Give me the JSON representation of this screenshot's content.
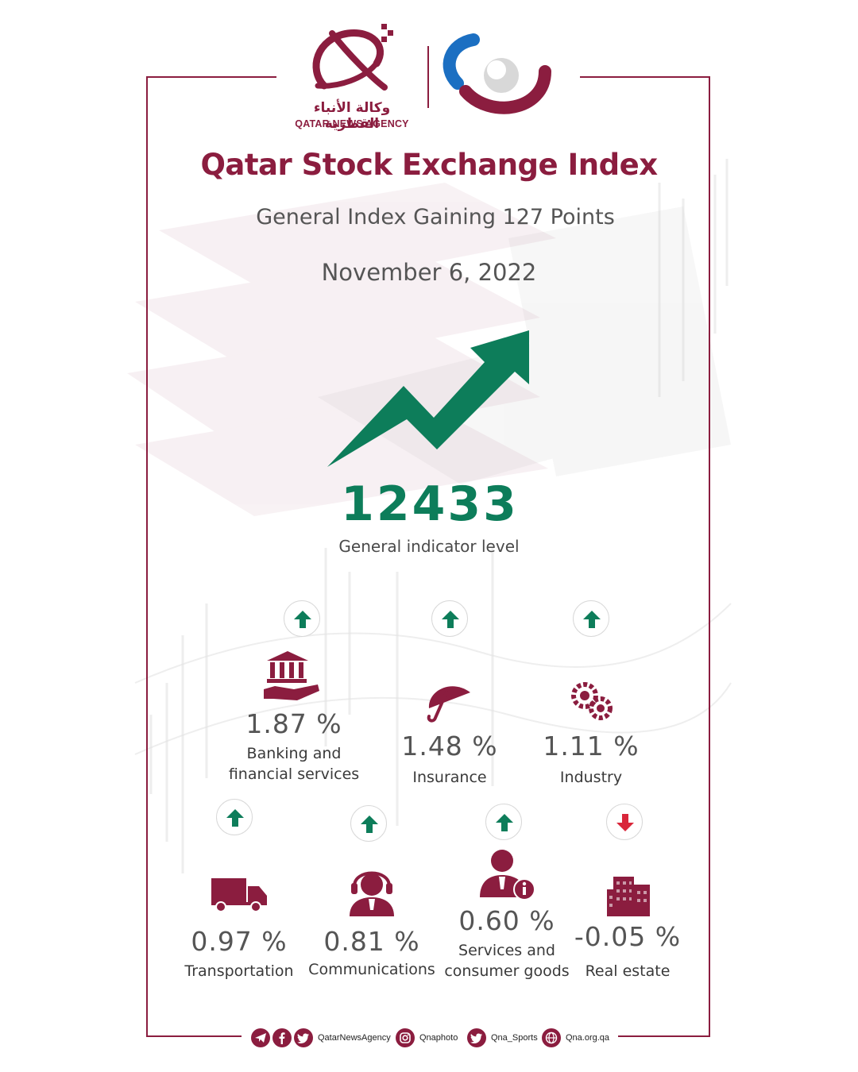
{
  "agency": {
    "name_ar": "وكالة الأنباء القطرية",
    "name_en": "QATAR NEWS AGENCY"
  },
  "title": "Qatar Stock Exchange Index",
  "subtitle": "General Index Gaining 127 Points",
  "date": "November 6, 2022",
  "index": {
    "value": "12433",
    "label": "General indicator level"
  },
  "sectors": [
    {
      "name": "Banking and financial services",
      "name_line1": "Banking and",
      "name_line2": "financial services",
      "change": "1.87 %",
      "direction": "up",
      "icon": "bank-hand-icon"
    },
    {
      "name": "Insurance",
      "change": "1.48 %",
      "direction": "up",
      "icon": "umbrella-icon"
    },
    {
      "name": "Industry",
      "change": "1.11 %",
      "direction": "up",
      "icon": "gears-icon"
    },
    {
      "name": "Transportation",
      "change": "0.97 %",
      "direction": "up",
      "icon": "truck-icon"
    },
    {
      "name": "Communications",
      "change": "0.81 %",
      "direction": "up",
      "icon": "headset-agent-icon"
    },
    {
      "name": "Services and consumer goods",
      "name_line1": "Services and",
      "name_line2": "consumer goods",
      "change": "0.60 %",
      "direction": "up",
      "icon": "info-agent-icon"
    },
    {
      "name": "Real estate",
      "change": "-0.05 %",
      "direction": "down",
      "icon": "building-icon"
    }
  ],
  "colors": {
    "brand": "#8b1d3f",
    "up": "#0d7d5a",
    "down": "#d9263a"
  },
  "footer": {
    "handle1": "QatarNewsAgency",
    "handle2": "Qnaphoto",
    "handle3": "Qna_Sports",
    "website": "Qna.org.qa"
  }
}
